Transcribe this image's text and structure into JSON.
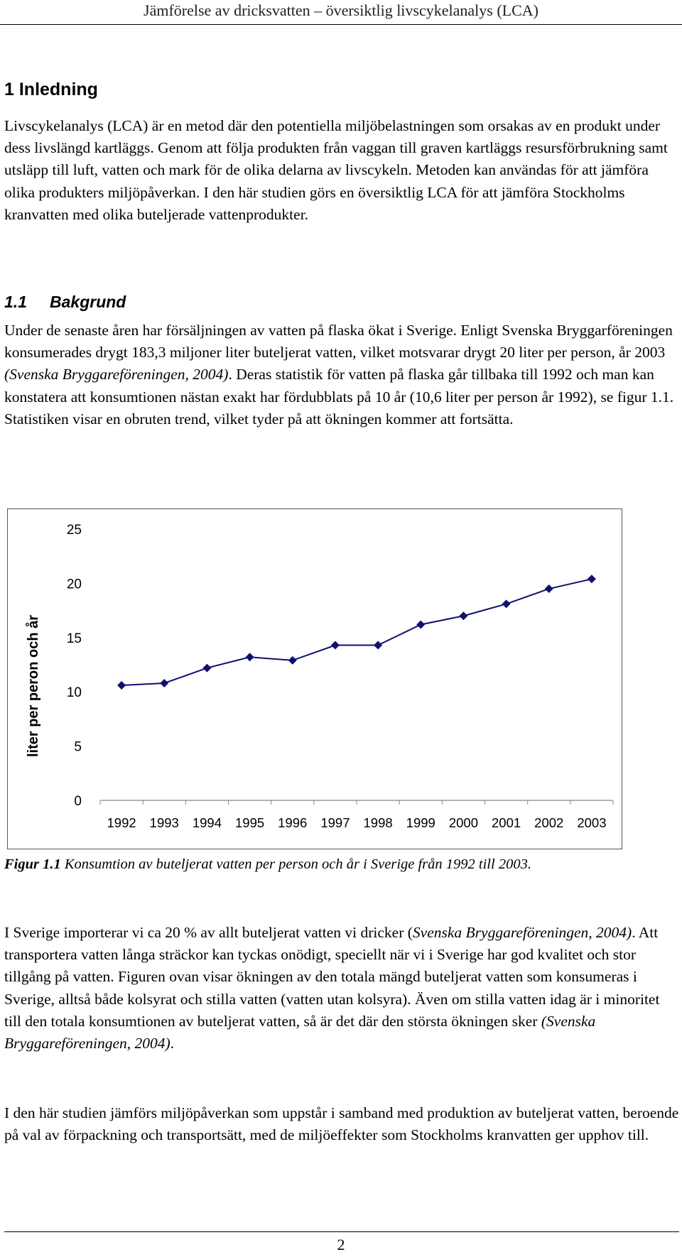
{
  "header": {
    "title": "Jämförelse av dricksvatten – översiktlig livscykelanalys (LCA)"
  },
  "section1": {
    "heading": "1 Inledning",
    "paragraph": "Livscykelanalys (LCA) är en metod där den potentiella miljöbelastningen som orsakas av en produkt under dess livslängd kartläggs. Genom att följa produkten från vaggan till graven kartläggs resursförbrukning samt utsläpp till luft, vatten och mark för de olika delarna av livscykeln. Metoden kan användas för att jämföra olika produkters miljöpåverkan. I den här studien görs en översiktlig LCA för att jämföra Stockholms kranvatten med olika buteljerade vattenprodukter."
  },
  "section11": {
    "number": "1.1",
    "heading": "Bakgrund",
    "p_before": "Under de senaste åren har försäljningen av vatten på flaska ökat i Sverige. Enligt Svenska Bryggarföreningen konsumerades drygt 183,3 miljoner liter buteljerat vatten, vilket motsvarar drygt 20 liter per person, år 2003 ",
    "p_cite": "(Svenska Bryggareföreningen, 2004)",
    "p_after": ". Deras statistik för vatten på flaska går tillbaka till 1992 och man kan konstatera att konsumtionen nästan exakt har fördubblats på 10 år (10,6 liter per person år 1992), se figur 1.1. Statistiken visar en obruten trend, vilket tyder på att ökningen kommer att fortsätta."
  },
  "chart_data": {
    "type": "line",
    "title": "",
    "xlabel": "",
    "ylabel": "liter per peron och år",
    "categories": [
      "1992",
      "1993",
      "1994",
      "1995",
      "1996",
      "1997",
      "1998",
      "1999",
      "2000",
      "2001",
      "2002",
      "2003"
    ],
    "values": [
      10.6,
      10.8,
      12.2,
      13.2,
      12.9,
      14.3,
      14.3,
      16.2,
      17.0,
      18.1,
      19.5,
      20.4
    ],
    "ylim": [
      0,
      25
    ],
    "yticks": [
      "0",
      "5",
      "10",
      "15",
      "20",
      "25"
    ],
    "grid": false,
    "legend": "none",
    "line_color": "#0f0f6e",
    "marker": "diamond"
  },
  "caption": {
    "label": "Figur 1.1",
    "text": " Konsumtion av buteljerat vatten per person och år i Sverige från 1992 till 2003."
  },
  "p3": {
    "a": "I Sverige importerar vi ca 20 % av allt buteljerat vatten vi dricker (",
    "cite1": "Svenska Bryggareföreningen, 2004)",
    "b": ". Att transportera vatten långa sträckor kan tyckas onödigt, speciellt när vi i Sverige har god kvalitet och stor tillgång på vatten. Figuren ovan visar ökningen av den totala mängd buteljerat vatten som konsumeras i Sverige, alltså både kolsyrat och stilla vatten (vatten utan kolsyra). Även om stilla vatten idag är i minoritet till den totala konsumtionen av buteljerat vatten, så är det där den största ökningen sker ",
    "cite2": "(Svenska Bryggareföreningen, 2004)",
    "c": "."
  },
  "p4": {
    "text": "I den här studien jämförs miljöpåverkan som uppstår i samband med produktion av buteljerat vatten, beroende på val av förpackning och transportsätt, med de miljöeffekter som Stockholms kranvatten ger upphov till."
  },
  "footer": {
    "page_number": "2"
  }
}
